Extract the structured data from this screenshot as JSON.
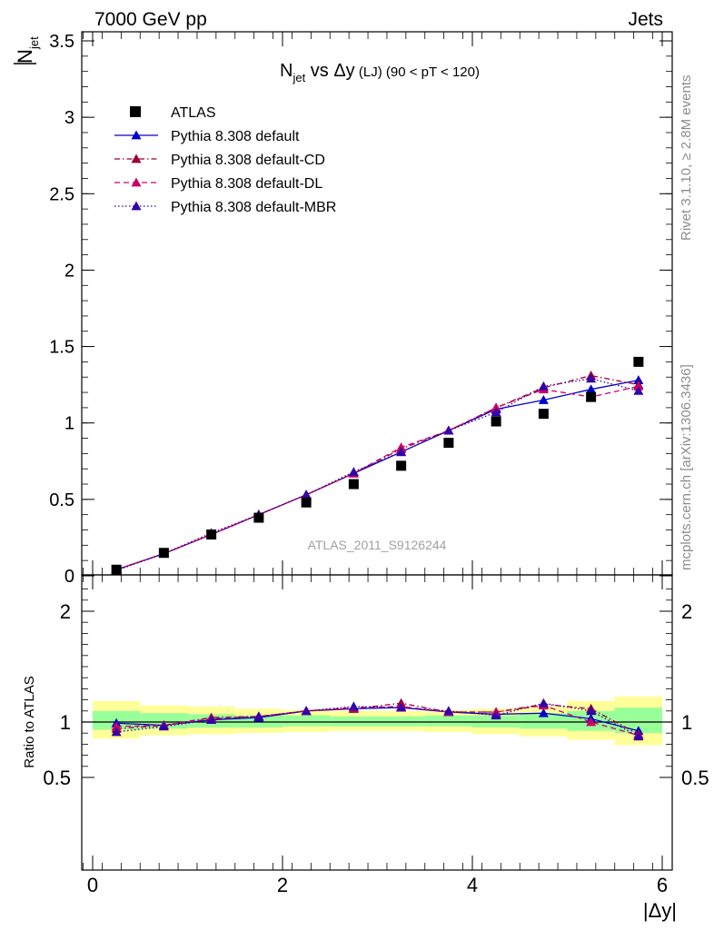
{
  "header": {
    "left": "7000 GeV pp",
    "right": "Jets"
  },
  "title": {
    "main": "N",
    "sub": "jet",
    "rest": " vs Δy",
    "small": " (LJ)",
    "tail": " (90 < pT < 120)"
  },
  "side_labels": {
    "top": "Rivet 3.1.10, ≥ 2.8M events",
    "bottom": "mcplots.cern.ch [arXiv:1306.3436]"
  },
  "watermark": "ATLAS_2011_S9126244",
  "ylabel_main": {
    "bar": "N",
    "sub": "jet"
  },
  "ylabel_ratio": "Ratio to ATLAS",
  "xlabel": "|Δy|",
  "colors": {
    "data": "#000000",
    "default": "#0000cc",
    "cd": "#990033",
    "dl": "#cc0066",
    "mbr": "#3300aa",
    "band_yellow": "#ffff99",
    "band_green": "#99ff99"
  },
  "chart_data": {
    "type": "line",
    "x": [
      0.25,
      0.75,
      1.25,
      1.75,
      2.25,
      2.75,
      3.25,
      3.75,
      4.25,
      4.75,
      5.25,
      5.75
    ],
    "xlim": [
      -0.15,
      6.1
    ],
    "ylim_main": [
      0,
      3.6
    ],
    "ylim_ratio": [
      0.4,
      2.3
    ],
    "xticks": [
      "0",
      "2",
      "4",
      "6"
    ],
    "yticks_main": [
      "0",
      "0.5",
      "1",
      "1.5",
      "2",
      "2.5",
      "3",
      "3.5"
    ],
    "yticks_ratio": [
      "0.5",
      "1",
      "2"
    ],
    "legend_position": "top-left",
    "data": {
      "name": "ATLAS",
      "values": [
        0.04,
        0.15,
        0.27,
        0.38,
        0.48,
        0.6,
        0.72,
        0.87,
        1.01,
        1.06,
        1.17,
        1.4
      ]
    },
    "series": [
      {
        "name": "Pythia 8.308 default",
        "style": "solid",
        "values": [
          0.04,
          0.145,
          0.27,
          0.4,
          0.53,
          0.67,
          0.81,
          0.95,
          1.09,
          1.15,
          1.22,
          1.28
        ]
      },
      {
        "name": "Pythia 8.308 default-CD",
        "style": "dashdot",
        "values": [
          0.04,
          0.145,
          0.27,
          0.4,
          0.53,
          0.67,
          0.83,
          0.95,
          1.1,
          1.23,
          1.31,
          1.25
        ]
      },
      {
        "name": "Pythia 8.308 default-DL",
        "style": "dashed",
        "values": [
          0.04,
          0.145,
          0.27,
          0.4,
          0.53,
          0.67,
          0.84,
          0.95,
          1.1,
          1.22,
          1.17,
          1.24
        ]
      },
      {
        "name": "Pythia 8.308 default-MBR",
        "style": "dotted",
        "values": [
          0.035,
          0.145,
          0.28,
          0.4,
          0.53,
          0.68,
          0.81,
          0.95,
          1.07,
          1.24,
          1.29,
          1.21
        ]
      }
    ],
    "ratio_series": [
      {
        "name": "Pythia 8.308 default",
        "values": [
          0.99,
          0.97,
          1.02,
          1.04,
          1.1,
          1.12,
          1.13,
          1.09,
          1.07,
          1.08,
          1.03,
          0.92
        ]
      },
      {
        "name": "Pythia 8.308 default-CD",
        "values": [
          0.94,
          0.97,
          1.04,
          1.05,
          1.1,
          1.12,
          1.17,
          1.09,
          1.09,
          1.16,
          1.12,
          0.89
        ]
      },
      {
        "name": "Pythia 8.308 default-DL",
        "values": [
          0.96,
          0.97,
          1.03,
          1.05,
          1.1,
          1.13,
          1.14,
          1.09,
          1.09,
          1.15,
          1.0,
          0.88
        ]
      },
      {
        "name": "Pythia 8.308 default-MBR",
        "values": [
          0.91,
          0.96,
          1.02,
          1.05,
          1.1,
          1.14,
          1.13,
          1.1,
          1.06,
          1.17,
          1.1,
          0.87
        ]
      }
    ],
    "ratio_bands": {
      "x_edges": [
        0,
        0.5,
        1,
        1.5,
        2,
        2.5,
        3,
        3.5,
        4,
        4.5,
        5,
        5.5,
        6
      ],
      "yellow_lo": [
        0.85,
        0.88,
        0.89,
        0.9,
        0.91,
        0.92,
        0.92,
        0.91,
        0.89,
        0.87,
        0.84,
        0.79
      ],
      "yellow_hi": [
        1.19,
        1.15,
        1.14,
        1.12,
        1.11,
        1.1,
        1.1,
        1.11,
        1.12,
        1.14,
        1.19,
        1.23
      ],
      "green_lo": [
        0.93,
        0.94,
        0.95,
        0.95,
        0.96,
        0.96,
        0.96,
        0.96,
        0.95,
        0.94,
        0.92,
        0.9
      ],
      "green_hi": [
        1.1,
        1.08,
        1.07,
        1.06,
        1.06,
        1.05,
        1.05,
        1.06,
        1.06,
        1.08,
        1.1,
        1.13
      ]
    }
  }
}
